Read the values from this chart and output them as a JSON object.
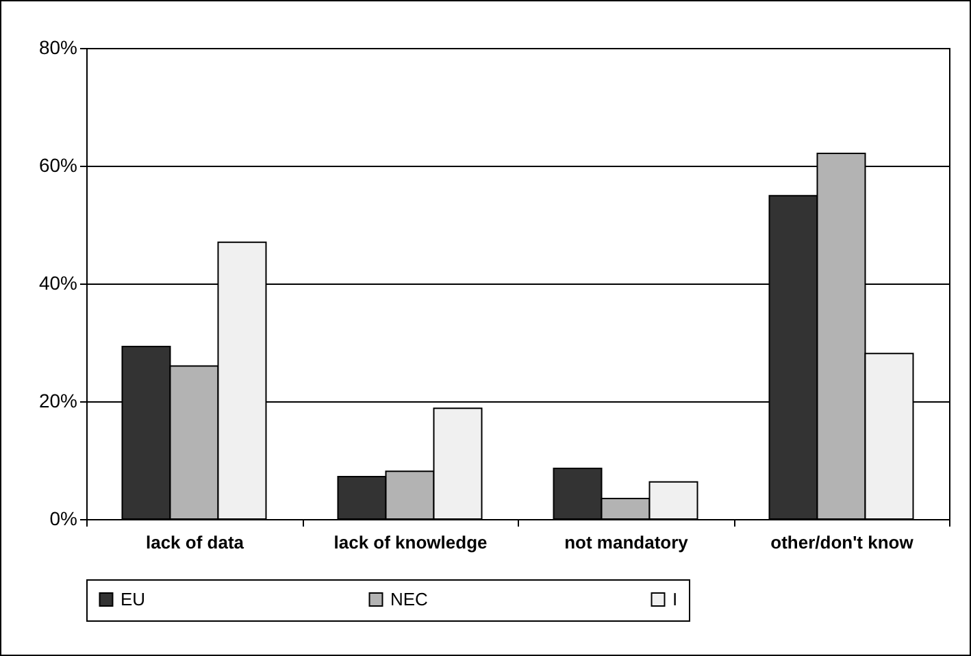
{
  "chart_data": {
    "type": "bar",
    "categories": [
      "lack of data",
      "lack of knowledge",
      "not mandatory",
      "other/don't know"
    ],
    "series": [
      {
        "name": "EU",
        "color": "#333333",
        "values": [
          29.3,
          7.2,
          8.6,
          54.9
        ]
      },
      {
        "name": "NEC",
        "color": "#b3b3b3",
        "values": [
          26,
          8.1,
          3.5,
          62.1
        ]
      },
      {
        "name": "I",
        "color": "#f0f0f0",
        "values": [
          47,
          18.8,
          6.3,
          28.1
        ]
      }
    ],
    "ylim": [
      0,
      80
    ],
    "yticks": [
      {
        "value": 0,
        "label": "0%"
      },
      {
        "value": 20,
        "label": "20%"
      },
      {
        "value": 40,
        "label": "40%"
      },
      {
        "value": 60,
        "label": "60%"
      },
      {
        "value": 80,
        "label": "80%"
      }
    ],
    "grid": "y",
    "legend": "bottom"
  }
}
